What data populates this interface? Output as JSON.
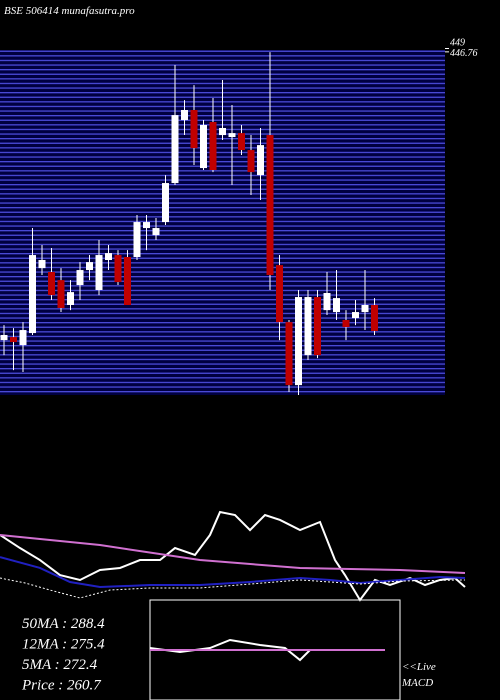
{
  "chart_data": {
    "type": "candlestick",
    "title": "BSE 506414 munafasutra.pro",
    "ylim": [
      218,
      450
    ],
    "yticks": [
      449,
      446.76
    ],
    "up_color": "#ffffff",
    "down_color": "#c00000",
    "candles": [
      [
        254.6,
        264.6,
        244.6,
        258.0
      ],
      [
        256.6,
        262.6,
        234.6,
        253.3
      ],
      [
        251.3,
        266.6,
        233.3,
        261.3
      ],
      [
        259.3,
        329.3,
        258.0,
        311.3
      ],
      [
        302.6,
        318.0,
        298.0,
        308.0
      ],
      [
        300.0,
        316.0,
        281.3,
        284.6
      ],
      [
        294.6,
        302.6,
        273.3,
        276.0
      ],
      [
        278.0,
        294.6,
        274.6,
        286.6
      ],
      [
        291.3,
        306.6,
        281.3,
        301.3
      ],
      [
        301.3,
        311.3,
        294.6,
        306.6
      ],
      [
        288.0,
        321.3,
        284.6,
        311.3
      ],
      [
        308.0,
        318.0,
        301.3,
        312.6
      ],
      [
        311.3,
        314.6,
        291.3,
        293.3
      ],
      [
        310.0,
        314.6,
        278.0,
        278.0
      ],
      [
        310.0,
        338.0,
        308.0,
        333.3
      ],
      [
        329.3,
        338.0,
        314.6,
        333.3
      ],
      [
        324.6,
        336.0,
        321.3,
        329.3
      ],
      [
        333.3,
        364.6,
        331.3,
        359.3
      ],
      [
        359.3,
        438.0,
        358.0,
        404.6
      ],
      [
        401.3,
        414.6,
        391.3,
        408.0
      ],
      [
        408.0,
        424.6,
        371.3,
        382.6
      ],
      [
        369.3,
        401.3,
        368.0,
        398.0
      ],
      [
        400.0,
        416.0,
        366.6,
        368.0
      ],
      [
        391.3,
        428.0,
        388.0,
        396.0
      ],
      [
        390.0,
        411.3,
        358.0,
        392.6
      ],
      [
        392.6,
        398.0,
        378.0,
        381.3
      ],
      [
        381.3,
        391.3,
        351.3,
        366.6
      ],
      [
        364.6,
        396.0,
        348.0,
        384.6
      ],
      [
        391.3,
        446.6,
        288.0,
        298.0
      ],
      [
        304.6,
        311.3,
        254.6,
        266.6
      ],
      [
        266.6,
        268.0,
        220.0,
        224.6
      ],
      [
        224.6,
        288.0,
        218.0,
        283.3
      ],
      [
        244.6,
        288.0,
        241.3,
        283.3
      ],
      [
        283.3,
        288.0,
        242.6,
        244.6
      ],
      [
        274.6,
        300.0,
        271.3,
        286.0
      ],
      [
        273.3,
        301.3,
        268.0,
        282.6
      ],
      [
        268.0,
        274.6,
        254.6,
        263.3
      ],
      [
        269.3,
        281.3,
        264.6,
        273.3
      ],
      [
        273.3,
        301.3,
        261.3,
        278.0
      ],
      [
        278.0,
        282.6,
        258.0,
        260.7
      ]
    ],
    "indicators": {
      "xlim": [
        0,
        465
      ],
      "ylim": [
        0,
        100
      ],
      "series": [
        {
          "color": "#ffffff",
          "x": [
            0,
            20,
            40,
            60,
            80,
            100,
            120,
            140,
            160,
            175,
            195,
            210,
            220,
            235,
            250,
            265,
            280,
            300,
            320,
            335,
            345,
            360,
            375,
            390,
            410,
            425,
            440,
            455,
            465
          ],
          "values": [
            54.2,
            43.3,
            33.3,
            20.8,
            16.7,
            25,
            26.7,
            33.3,
            33.3,
            43.3,
            37.5,
            54.2,
            73.3,
            70.8,
            58.3,
            70.8,
            66.7,
            58.3,
            65,
            33.3,
            20.8,
            0,
            16.7,
            12.5,
            18.3,
            12.5,
            16.7,
            18.3,
            10.8
          ]
        },
        {
          "color": "#d070d0",
          "x": [
            0,
            100,
            200,
            300,
            400,
            465
          ],
          "values": [
            54.2,
            45.8,
            33.3,
            26.7,
            25,
            22.5
          ]
        },
        {
          "color": "#2020c0",
          "x": [
            0,
            40,
            70,
            100,
            150,
            200,
            250,
            300,
            330,
            360,
            400,
            440,
            465
          ],
          "values": [
            35.8,
            26.7,
            15,
            10.8,
            12.5,
            12.5,
            15,
            18.3,
            16.7,
            14.2,
            16.7,
            19.2,
            18.3
          ]
        },
        {
          "color": "#ffffff",
          "dash": true,
          "x": [
            0,
            25,
            50,
            80,
            110,
            150,
            200,
            250,
            300,
            330,
            360,
            400,
            465
          ],
          "values": [
            18.3,
            14.2,
            8.3,
            1.7,
            8.3,
            10,
            10,
            13.3,
            16.7,
            15,
            13.3,
            15.8,
            16.7
          ]
        }
      ]
    },
    "macd": {
      "label": "MACD",
      "link": "<<Live",
      "xlim": [
        150,
        385
      ],
      "ylim": [
        0,
        100
      ],
      "series": [
        {
          "color": "#ffffff",
          "x": [
            150,
            180,
            210,
            230,
            260,
            285,
            300,
            310,
            340,
            385
          ],
          "values": [
            52,
            48,
            52,
            60,
            55,
            52,
            40,
            50,
            50,
            50
          ]
        },
        {
          "color": "#d070d0",
          "x": [
            150,
            385
          ],
          "values": [
            50,
            50
          ]
        }
      ]
    },
    "stats": [
      "50MA : 288.4",
      "12MA : 275.4",
      "5MA : 272.4",
      "Price   : 260.7"
    ]
  }
}
